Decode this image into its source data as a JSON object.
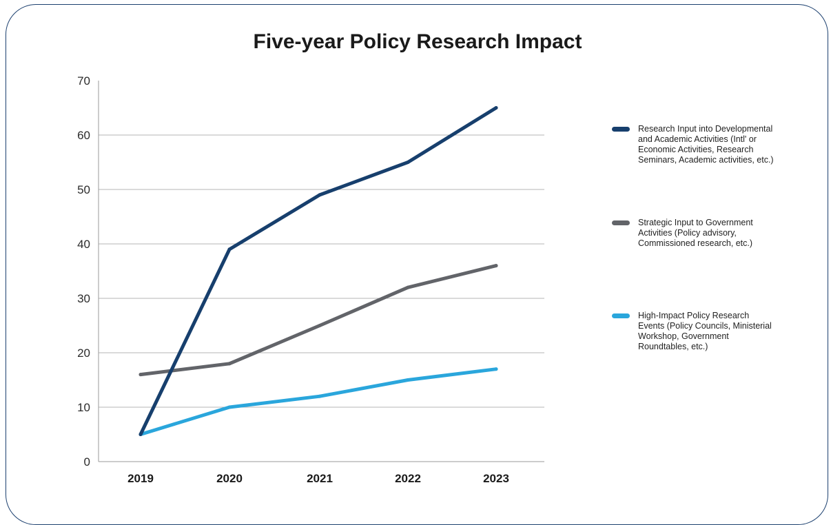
{
  "chart_data": {
    "type": "line",
    "title": "Five-year Policy Research Impact",
    "categories": [
      "2019",
      "2020",
      "2021",
      "2022",
      "2023"
    ],
    "ylim": [
      0,
      70
    ],
    "yticks": [
      0,
      10,
      20,
      30,
      40,
      50,
      60,
      70
    ],
    "grid": true,
    "legend_position": "right",
    "series": [
      {
        "name": "Research Input into Developmental and Academic Activities (Intl' or Economic Activities, Research Seminars, Academic activities, etc.)",
        "values": [
          5,
          39,
          49,
          55,
          65
        ],
        "color": "#173f6d"
      },
      {
        "name": "Strategic Input to Government Activities (Policy advisory, Commissioned research, etc.)",
        "values": [
          16,
          18,
          25,
          32,
          36
        ],
        "color": "#626469"
      },
      {
        "name": "High-Impact Policy Research Events (Policy Councils, Ministerial Workshop, Government Roundtables, etc.)",
        "values": [
          5,
          10,
          12,
          15,
          17
        ],
        "color": "#2aa6dc"
      }
    ]
  }
}
